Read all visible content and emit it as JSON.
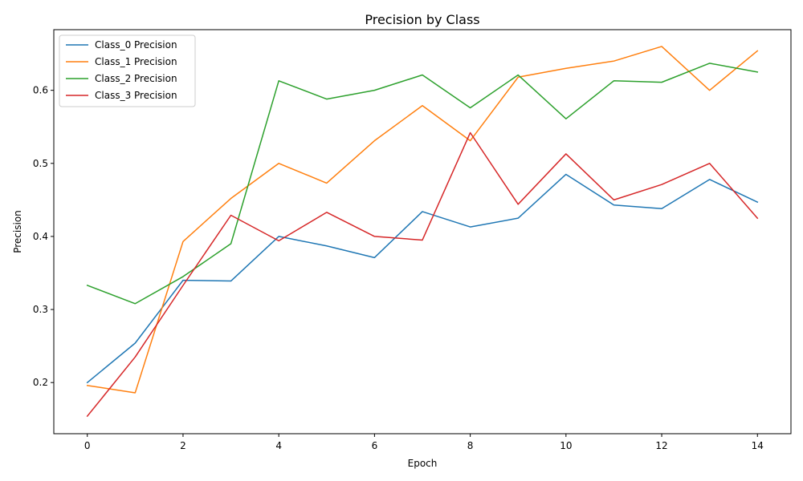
{
  "chart_data": {
    "type": "line",
    "title": "Precision by Class",
    "xlabel": "Epoch",
    "ylabel": "Precision",
    "x": [
      0,
      1,
      2,
      3,
      4,
      5,
      6,
      7,
      8,
      9,
      10,
      11,
      12,
      13,
      14
    ],
    "xlim": [
      -0.7,
      14.7
    ],
    "ylim": [
      0.13,
      0.683
    ],
    "x_ticks": [
      0,
      2,
      4,
      6,
      8,
      10,
      12,
      14
    ],
    "x_tick_labels": [
      "0",
      "2",
      "4",
      "6",
      "8",
      "10",
      "12",
      "14"
    ],
    "y_ticks": [
      0.2,
      0.3,
      0.4,
      0.5,
      0.6
    ],
    "y_tick_labels": [
      "0.2",
      "0.3",
      "0.4",
      "0.5",
      "0.6"
    ],
    "grid": false,
    "legend_position": "upper-left",
    "series": [
      {
        "name": "Class_0 Precision",
        "color": "#1f77b4",
        "values": [
          0.2,
          0.254,
          0.34,
          0.339,
          0.4,
          0.387,
          0.371,
          0.434,
          0.413,
          0.425,
          0.485,
          0.443,
          0.438,
          0.478,
          0.447
        ]
      },
      {
        "name": "Class_1 Precision",
        "color": "#ff7f0e",
        "values": [
          0.196,
          0.186,
          0.393,
          0.452,
          0.5,
          0.473,
          0.531,
          0.579,
          0.531,
          0.618,
          0.63,
          0.64,
          0.66,
          0.6,
          0.654
        ]
      },
      {
        "name": "Class_2 Precision",
        "color": "#2ca02c",
        "values": [
          0.333,
          0.308,
          0.345,
          0.39,
          0.613,
          0.588,
          0.6,
          0.621,
          0.576,
          0.621,
          0.561,
          0.613,
          0.611,
          0.637,
          0.625
        ]
      },
      {
        "name": "Class_3 Precision",
        "color": "#d62728",
        "values": [
          0.154,
          0.235,
          0.333,
          0.429,
          0.394,
          0.433,
          0.4,
          0.395,
          0.542,
          0.444,
          0.513,
          0.45,
          0.471,
          0.5,
          0.425
        ]
      }
    ]
  }
}
